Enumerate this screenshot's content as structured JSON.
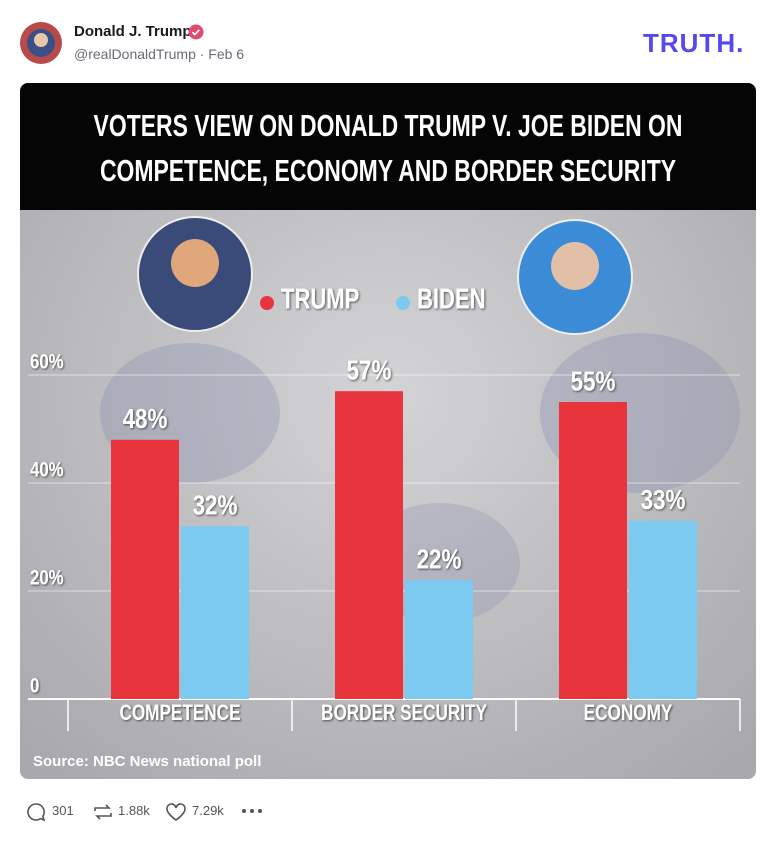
{
  "post": {
    "author": "Donald J. Trump",
    "handle_line": "@realDonaldTrump · Feb 6",
    "logo": "TRUTH.",
    "replies": "301",
    "retruths": "1.88k",
    "likes": "7.29k"
  },
  "chart_data": {
    "type": "bar",
    "title": [
      "VOTERS VIEW ON DONALD TRUMP V. JOE BIDEN ON",
      "COMPETENCE, ECONOMY AND BORDER SECURITY"
    ],
    "categories": [
      "COMPETENCE",
      "BORDER SECURITY",
      "ECONOMY"
    ],
    "series": [
      {
        "name": "TRUMP",
        "color": "#e8343c",
        "values": [
          48,
          57,
          55
        ],
        "value_labels": [
          "48%",
          "57%",
          "55%"
        ]
      },
      {
        "name": "BIDEN",
        "color": "#7ccaf0",
        "values": [
          32,
          22,
          33
        ],
        "value_labels": [
          "32%",
          "22%",
          "33%"
        ]
      }
    ],
    "ylim": [
      0,
      60
    ],
    "yticks": [
      0,
      {
        "value": 20,
        "label": "20%"
      },
      {
        "value": 40,
        "label": "40%"
      },
      {
        "value": 60,
        "label": "60%"
      }
    ],
    "grid": true,
    "source": "Source: NBC News national poll"
  }
}
